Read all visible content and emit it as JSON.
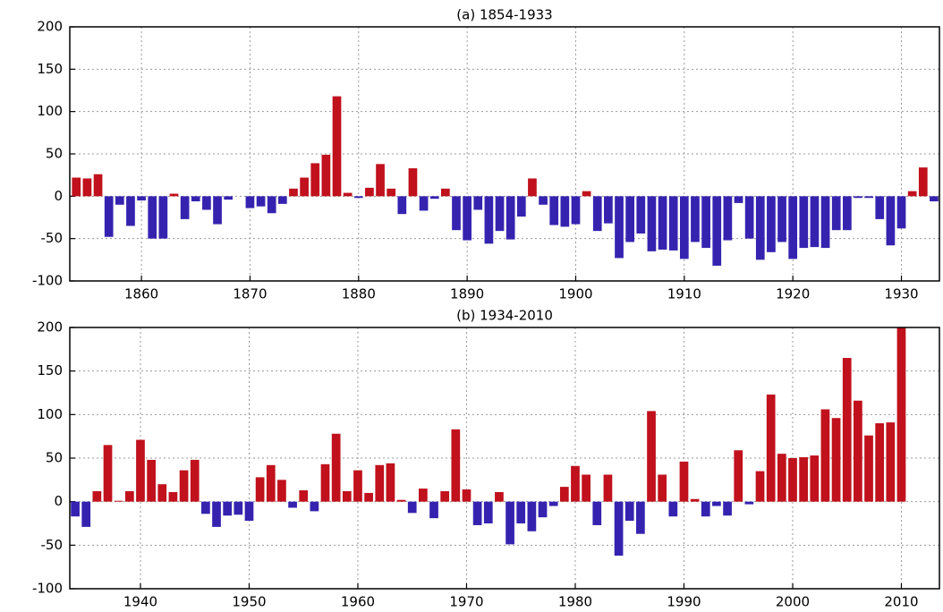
{
  "chart_data": [
    {
      "type": "bar",
      "title": "(a) 1854-1933",
      "x": [
        1854,
        1855,
        1856,
        1857,
        1858,
        1859,
        1860,
        1861,
        1862,
        1863,
        1864,
        1865,
        1866,
        1867,
        1868,
        1869,
        1870,
        1871,
        1872,
        1873,
        1874,
        1875,
        1876,
        1877,
        1878,
        1879,
        1880,
        1881,
        1882,
        1883,
        1884,
        1885,
        1886,
        1887,
        1888,
        1889,
        1890,
        1891,
        1892,
        1893,
        1894,
        1895,
        1896,
        1897,
        1898,
        1899,
        1900,
        1901,
        1902,
        1903,
        1904,
        1905,
        1906,
        1907,
        1908,
        1909,
        1910,
        1911,
        1912,
        1913,
        1914,
        1915,
        1916,
        1917,
        1918,
        1919,
        1920,
        1921,
        1922,
        1923,
        1924,
        1925,
        1926,
        1927,
        1928,
        1929,
        1930,
        1931,
        1932,
        1933
      ],
      "values": [
        22,
        21,
        26,
        -48,
        -10,
        -35,
        -5,
        -50,
        -50,
        3,
        -27,
        -6,
        -16,
        -33,
        -4,
        0,
        -14,
        -12,
        -20,
        -9,
        9,
        22,
        39,
        49,
        118,
        4,
        -2,
        10,
        38,
        9,
        -21,
        33,
        -17,
        -3,
        9,
        -40,
        -52,
        -16,
        -56,
        -41,
        -51,
        -24,
        21,
        -10,
        -34,
        -36,
        -33,
        6,
        -41,
        -32,
        -73,
        -54,
        -44,
        -65,
        -63,
        -64,
        -74,
        -54,
        -61,
        -82,
        -52,
        -8,
        -50,
        -75,
        -66,
        -54,
        -74,
        -61,
        -60,
        -61,
        -40,
        -40,
        -2,
        -2,
        -27,
        -58,
        -38,
        6,
        34,
        -6
      ],
      "positive_color": "#c0111c",
      "negative_color": "#3523b0",
      "xlim": [
        1853.4,
        1933.5
      ],
      "xticks": [
        1860,
        1870,
        1880,
        1890,
        1900,
        1910,
        1920,
        1930
      ],
      "ylim": [
        -100,
        200
      ],
      "yticks": [
        -100,
        -50,
        0,
        50,
        100,
        150,
        200
      ],
      "grid": true
    },
    {
      "type": "bar",
      "title": "(b) 1934-2010",
      "x": [
        1934,
        1935,
        1936,
        1937,
        1938,
        1939,
        1940,
        1941,
        1942,
        1943,
        1944,
        1945,
        1946,
        1947,
        1948,
        1949,
        1950,
        1951,
        1952,
        1953,
        1954,
        1955,
        1956,
        1957,
        1958,
        1959,
        1960,
        1961,
        1962,
        1963,
        1964,
        1965,
        1966,
        1967,
        1968,
        1969,
        1970,
        1971,
        1972,
        1973,
        1974,
        1975,
        1976,
        1977,
        1978,
        1979,
        1980,
        1981,
        1982,
        1983,
        1984,
        1985,
        1986,
        1987,
        1988,
        1989,
        1990,
        1991,
        1992,
        1993,
        1994,
        1995,
        1996,
        1997,
        1998,
        1999,
        2000,
        2001,
        2002,
        2003,
        2004,
        2005,
        2006,
        2007,
        2008,
        2009,
        2010
      ],
      "values": [
        -17,
        -29,
        12,
        65,
        1,
        12,
        71,
        48,
        20,
        11,
        36,
        48,
        -14,
        -29,
        -16,
        -15,
        -22,
        28,
        42,
        25,
        -7,
        13,
        -11,
        43,
        78,
        12,
        36,
        10,
        42,
        44,
        2,
        -13,
        15,
        -19,
        12,
        83,
        14,
        -27,
        -25,
        11,
        -49,
        -25,
        -34,
        -18,
        -5,
        17,
        41,
        31,
        -27,
        31,
        -62,
        -22,
        -37,
        104,
        31,
        -17,
        46,
        3,
        -17,
        -5,
        -16,
        59,
        -3,
        35,
        123,
        55,
        50,
        51,
        53,
        106,
        96,
        165,
        116,
        76,
        90,
        91,
        200
      ],
      "positive_color": "#c0111c",
      "negative_color": "#3523b0",
      "xlim": [
        1933.5,
        2013.5
      ],
      "xticks": [
        1940,
        1950,
        1960,
        1970,
        1980,
        1990,
        2000,
        2010
      ],
      "ylim": [
        -100,
        200
      ],
      "yticks": [
        -100,
        -50,
        0,
        50,
        100,
        150,
        200
      ],
      "grid": true
    }
  ]
}
